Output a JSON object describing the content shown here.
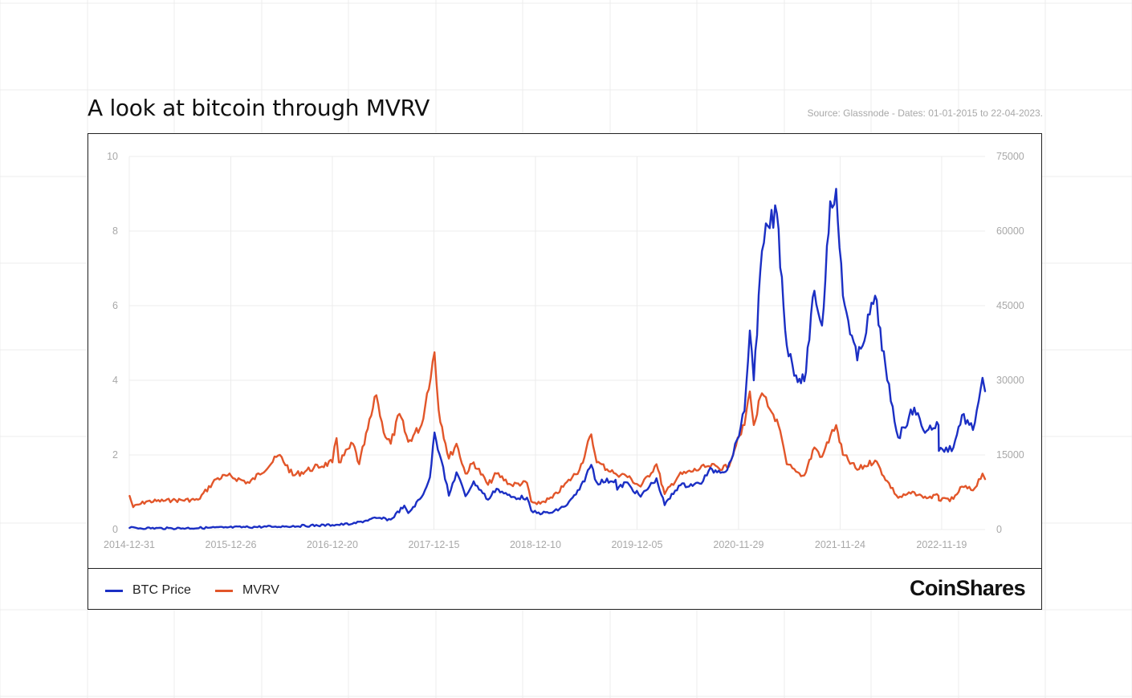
{
  "header": {
    "title": "A look at bitcoin through MVRV",
    "source": "Source: Glassnode - Dates: 01-01-2015 to 22-04-2023."
  },
  "legend": {
    "items": [
      {
        "label": "BTC Price",
        "color": "#1b2fc4"
      },
      {
        "label": "MVRV",
        "color": "#e2562a"
      }
    ]
  },
  "brand": {
    "logo_text": "CoinShares"
  },
  "chart_data": {
    "type": "line",
    "grid": true,
    "legend_placement": "bottom-left",
    "x_ticks": [
      "2014-12-31",
      "2015-12-26",
      "2016-12-20",
      "2017-12-15",
      "2018-12-10",
      "2019-12-05",
      "2020-11-29",
      "2021-11-24",
      "2022-11-19"
    ],
    "x_range": [
      "2014-12-31",
      "2023-04-22"
    ],
    "y_left": {
      "ticks": [
        0,
        2,
        4,
        6,
        8,
        10
      ],
      "range": [
        0,
        10
      ]
    },
    "y_right": {
      "ticks": [
        0,
        15000,
        30000,
        45000,
        60000,
        75000
      ],
      "range": [
        0,
        75000
      ]
    },
    "series": [
      {
        "name": "BTC Price",
        "axis": "right",
        "color": "#1b2fc4",
        "points": [
          [
            "2015-01-01",
            320
          ],
          [
            "2015-06-01",
            230
          ],
          [
            "2015-12-01",
            400
          ],
          [
            "2016-06-01",
            600
          ],
          [
            "2016-12-20",
            900
          ],
          [
            "2017-03-01",
            1150
          ],
          [
            "2017-05-25",
            2300
          ],
          [
            "2017-07-15",
            2000
          ],
          [
            "2017-09-01",
            4800
          ],
          [
            "2017-09-15",
            3300
          ],
          [
            "2017-11-01",
            6500
          ],
          [
            "2017-12-01",
            10500
          ],
          [
            "2017-12-17",
            19500
          ],
          [
            "2018-01-10",
            14000
          ],
          [
            "2018-02-06",
            6800
          ],
          [
            "2018-03-05",
            11500
          ],
          [
            "2018-04-06",
            6700
          ],
          [
            "2018-05-05",
            9700
          ],
          [
            "2018-06-25",
            6000
          ],
          [
            "2018-07-25",
            8200
          ],
          [
            "2018-09-15",
            6500
          ],
          [
            "2018-11-10",
            6400
          ],
          [
            "2018-11-25",
            3800
          ],
          [
            "2018-12-15",
            3300
          ],
          [
            "2019-02-08",
            3400
          ],
          [
            "2019-04-02",
            5000
          ],
          [
            "2019-05-15",
            8000
          ],
          [
            "2019-06-26",
            13000
          ],
          [
            "2019-07-15",
            9500
          ],
          [
            "2019-09-20",
            10000
          ],
          [
            "2019-09-26",
            8000
          ],
          [
            "2019-10-26",
            9500
          ],
          [
            "2019-12-18",
            6600
          ],
          [
            "2020-02-12",
            10300
          ],
          [
            "2020-03-12",
            4900
          ],
          [
            "2020-05-01",
            8800
          ],
          [
            "2020-07-20",
            9200
          ],
          [
            "2020-08-15",
            11800
          ],
          [
            "2020-10-20",
            12000
          ],
          [
            "2020-11-10",
            15000
          ],
          [
            "2020-12-20",
            23800
          ],
          [
            "2021-01-08",
            40000
          ],
          [
            "2021-01-22",
            30000
          ],
          [
            "2021-02-20",
            56000
          ],
          [
            "2021-03-13",
            61000
          ],
          [
            "2021-04-14",
            63500
          ],
          [
            "2021-05-19",
            37000
          ],
          [
            "2021-06-21",
            31000
          ],
          [
            "2021-07-20",
            29800
          ],
          [
            "2021-08-25",
            48000
          ],
          [
            "2021-09-21",
            41000
          ],
          [
            "2021-10-20",
            66000
          ],
          [
            "2021-11-10",
            68500
          ],
          [
            "2021-12-04",
            47000
          ],
          [
            "2022-01-24",
            34000
          ],
          [
            "2022-03-28",
            47000
          ],
          [
            "2022-05-10",
            30000
          ],
          [
            "2022-06-18",
            18500
          ],
          [
            "2022-08-14",
            24500
          ],
          [
            "2022-09-15",
            20000
          ],
          [
            "2022-11-08",
            21000
          ],
          [
            "2022-11-09",
            15800
          ],
          [
            "2022-12-31",
            16500
          ],
          [
            "2023-01-30",
            23000
          ],
          [
            "2023-03-10",
            20000
          ],
          [
            "2023-04-13",
            30500
          ],
          [
            "2023-04-22",
            27800
          ]
        ]
      },
      {
        "name": "MVRV",
        "axis": "left",
        "color": "#e2562a",
        "points": [
          [
            "2015-01-01",
            0.9
          ],
          [
            "2015-01-14",
            0.6
          ],
          [
            "2015-03-01",
            0.75
          ],
          [
            "2015-06-01",
            0.78
          ],
          [
            "2015-09-01",
            0.8
          ],
          [
            "2015-11-04",
            1.35
          ],
          [
            "2015-12-15",
            1.45
          ],
          [
            "2016-03-01",
            1.25
          ],
          [
            "2016-06-17",
            2.0
          ],
          [
            "2016-08-02",
            1.45
          ],
          [
            "2016-10-15",
            1.65
          ],
          [
            "2016-12-20",
            1.8
          ],
          [
            "2017-01-04",
            2.45
          ],
          [
            "2017-01-12",
            1.8
          ],
          [
            "2017-03-03",
            2.3
          ],
          [
            "2017-03-25",
            1.75
          ],
          [
            "2017-05-25",
            3.6
          ],
          [
            "2017-06-20",
            2.6
          ],
          [
            "2017-07-15",
            2.3
          ],
          [
            "2017-08-15",
            3.1
          ],
          [
            "2017-09-15",
            2.35
          ],
          [
            "2017-11-01",
            2.8
          ],
          [
            "2017-12-17",
            4.75
          ],
          [
            "2018-01-01",
            3.2
          ],
          [
            "2018-02-06",
            1.9
          ],
          [
            "2018-03-05",
            2.3
          ],
          [
            "2018-04-06",
            1.5
          ],
          [
            "2018-05-05",
            1.8
          ],
          [
            "2018-06-25",
            1.2
          ],
          [
            "2018-07-25",
            1.5
          ],
          [
            "2018-09-15",
            1.2
          ],
          [
            "2018-11-10",
            1.25
          ],
          [
            "2018-11-25",
            0.75
          ],
          [
            "2018-12-15",
            0.68
          ],
          [
            "2019-02-08",
            0.85
          ],
          [
            "2019-05-15",
            1.6
          ],
          [
            "2019-06-26",
            2.55
          ],
          [
            "2019-07-15",
            1.8
          ],
          [
            "2019-09-20",
            1.5
          ],
          [
            "2019-10-26",
            1.45
          ],
          [
            "2019-12-18",
            1.15
          ],
          [
            "2020-02-12",
            1.75
          ],
          [
            "2020-03-12",
            0.95
          ],
          [
            "2020-05-01",
            1.45
          ],
          [
            "2020-08-15",
            1.7
          ],
          [
            "2020-10-20",
            1.65
          ],
          [
            "2020-11-20",
            2.25
          ],
          [
            "2020-12-20",
            2.8
          ],
          [
            "2021-01-08",
            3.7
          ],
          [
            "2021-01-22",
            2.8
          ],
          [
            "2021-02-20",
            3.65
          ],
          [
            "2021-03-13",
            3.3
          ],
          [
            "2021-04-14",
            2.95
          ],
          [
            "2021-05-19",
            1.75
          ],
          [
            "2021-06-21",
            1.55
          ],
          [
            "2021-07-20",
            1.45
          ],
          [
            "2021-08-25",
            2.2
          ],
          [
            "2021-09-21",
            1.95
          ],
          [
            "2021-10-20",
            2.5
          ],
          [
            "2021-11-10",
            2.8
          ],
          [
            "2021-12-04",
            2.0
          ],
          [
            "2022-01-24",
            1.6
          ],
          [
            "2022-03-28",
            1.85
          ],
          [
            "2022-05-10",
            1.3
          ],
          [
            "2022-06-18",
            0.85
          ],
          [
            "2022-08-14",
            1.0
          ],
          [
            "2022-09-15",
            0.85
          ],
          [
            "2022-11-08",
            0.9
          ],
          [
            "2022-11-09",
            0.78
          ],
          [
            "2022-12-31",
            0.82
          ],
          [
            "2023-01-30",
            1.15
          ],
          [
            "2023-03-10",
            1.05
          ],
          [
            "2023-04-13",
            1.5
          ],
          [
            "2023-04-22",
            1.35
          ]
        ]
      }
    ]
  }
}
